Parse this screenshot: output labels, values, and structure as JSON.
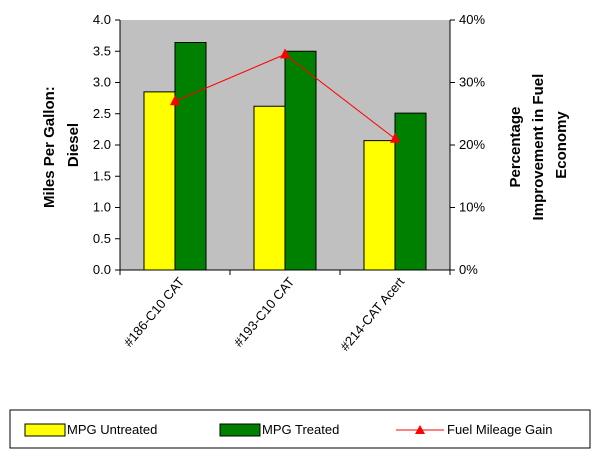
{
  "chart_data": {
    "type": "bar",
    "categories": [
      "#186-C10 CAT",
      "#193-C10 CAT",
      "#214-CAT Acert"
    ],
    "series": [
      {
        "name": "MPG Untreated",
        "values": [
          2.85,
          2.62,
          2.07
        ],
        "color": "#ffff00",
        "axis": "left"
      },
      {
        "name": "MPG Treated",
        "values": [
          3.64,
          3.5,
          2.51
        ],
        "color": "#008000",
        "axis": "left"
      }
    ],
    "line_series": [
      {
        "name": "Fuel Mileage Gain",
        "values": [
          27,
          34.5,
          21
        ],
        "color": "#ff0000",
        "axis": "right",
        "marker": "triangle"
      }
    ],
    "ylabel": [
      "Miles Per Gallon:",
      "Diesel"
    ],
    "y2label": [
      "Percentage",
      "Improvement in Fuel",
      "Economy"
    ],
    "ylim": [
      0,
      4.0
    ],
    "yticks": [
      "0.0",
      "0.5",
      "1.0",
      "1.5",
      "2.0",
      "2.5",
      "3.0",
      "3.5",
      "4.0"
    ],
    "y2lim": [
      0,
      40
    ],
    "y2ticks": [
      "0%",
      "10%",
      "20%",
      "30%",
      "40%"
    ],
    "plot_background": "#c0c0c0",
    "grid": false,
    "legend_position": "bottom"
  }
}
